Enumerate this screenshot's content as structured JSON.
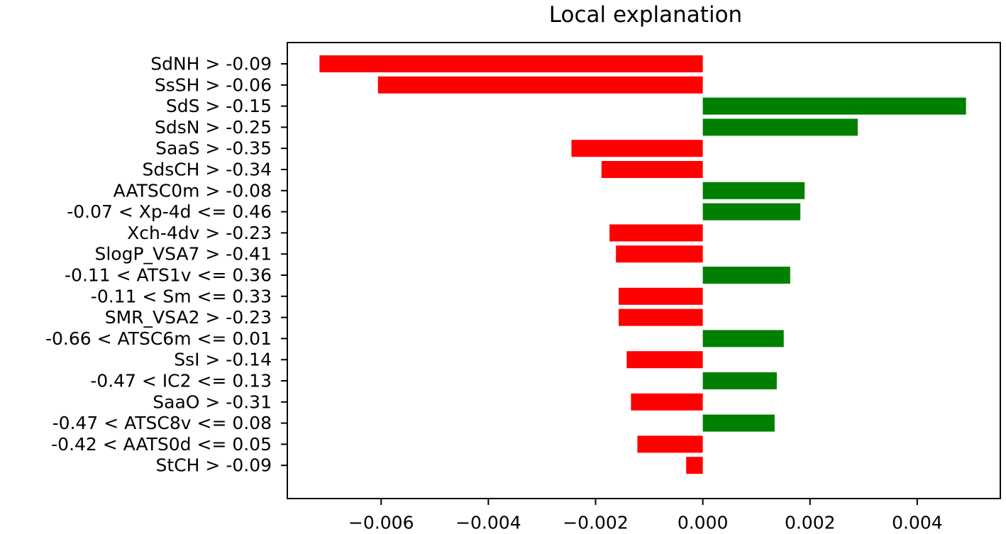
{
  "chart_data": {
    "type": "bar",
    "orientation": "horizontal",
    "title": "Local explanation",
    "xlabel": "",
    "ylabel": "",
    "xlim": [
      -0.00775,
      0.00555
    ],
    "xticks": [
      -0.006,
      -0.004,
      -0.002,
      0.0,
      0.002,
      0.004
    ],
    "xtick_labels": [
      "−0.006",
      "−0.004",
      "−0.002",
      "0.000",
      "0.002",
      "0.004"
    ],
    "grid": false,
    "legend": "none",
    "colors": {
      "positive": "#008000",
      "negative": "#ff0000",
      "axis": "#000000",
      "background": "#ffffff"
    },
    "categories": [
      "SdNH > -0.09",
      "SsSH > -0.06",
      "SdS > -0.15",
      "SdsN > -0.25",
      "SaaS > -0.35",
      "SdsCH > -0.34",
      "AATSC0m > -0.08",
      "-0.07 < Xp-4d <= 0.46",
      "Xch-4dv > -0.23",
      "SlogP_VSA7 > -0.41",
      "-0.11 < ATS1v <= 0.36",
      "-0.11 < Sm <= 0.33",
      "SMR_VSA2 > -0.23",
      "-0.66 < ATSC6m <= 0.01",
      "SsI > -0.14",
      "-0.47 < IC2 <= 0.13",
      "SaaO > -0.31",
      "-0.47 < ATSC8v <= 0.08",
      "-0.42 < AATS0d <= 0.05",
      "StCH > -0.09"
    ],
    "values": [
      -0.00715,
      -0.00606,
      0.00491,
      0.00289,
      -0.00245,
      -0.00189,
      0.0019,
      0.00182,
      -0.00174,
      -0.00162,
      0.00163,
      -0.00157,
      -0.00157,
      0.00151,
      -0.00142,
      0.00138,
      -0.00134,
      0.00134,
      -0.00122,
      -0.00031
    ]
  }
}
